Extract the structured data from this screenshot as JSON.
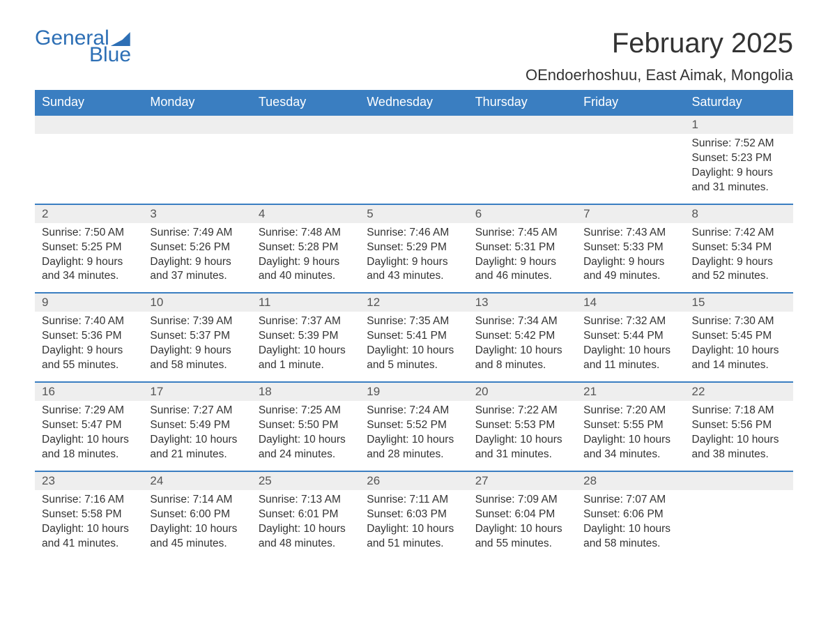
{
  "logo": {
    "text1": "General",
    "text2": "Blue"
  },
  "title": "February 2025",
  "location": "OEndoerhoshuu, East Aimak, Mongolia",
  "colors": {
    "header_bg": "#3a7ec1",
    "header_text": "#ffffff",
    "border": "#3a7ec1",
    "daynum_bg": "#eeeeee",
    "logo": "#2d6fb5"
  },
  "font": {
    "title_size": 40,
    "location_size": 22,
    "dow_size": 18,
    "body_size": 15.5
  },
  "dow": [
    "Sunday",
    "Monday",
    "Tuesday",
    "Wednesday",
    "Thursday",
    "Friday",
    "Saturday"
  ],
  "weeks": [
    [
      {
        "n": "",
        "sr": "",
        "ss": "",
        "dl": ""
      },
      {
        "n": "",
        "sr": "",
        "ss": "",
        "dl": ""
      },
      {
        "n": "",
        "sr": "",
        "ss": "",
        "dl": ""
      },
      {
        "n": "",
        "sr": "",
        "ss": "",
        "dl": ""
      },
      {
        "n": "",
        "sr": "",
        "ss": "",
        "dl": ""
      },
      {
        "n": "",
        "sr": "",
        "ss": "",
        "dl": ""
      },
      {
        "n": "1",
        "sr": "Sunrise: 7:52 AM",
        "ss": "Sunset: 5:23 PM",
        "dl": "Daylight: 9 hours and 31 minutes."
      }
    ],
    [
      {
        "n": "2",
        "sr": "Sunrise: 7:50 AM",
        "ss": "Sunset: 5:25 PM",
        "dl": "Daylight: 9 hours and 34 minutes."
      },
      {
        "n": "3",
        "sr": "Sunrise: 7:49 AM",
        "ss": "Sunset: 5:26 PM",
        "dl": "Daylight: 9 hours and 37 minutes."
      },
      {
        "n": "4",
        "sr": "Sunrise: 7:48 AM",
        "ss": "Sunset: 5:28 PM",
        "dl": "Daylight: 9 hours and 40 minutes."
      },
      {
        "n": "5",
        "sr": "Sunrise: 7:46 AM",
        "ss": "Sunset: 5:29 PM",
        "dl": "Daylight: 9 hours and 43 minutes."
      },
      {
        "n": "6",
        "sr": "Sunrise: 7:45 AM",
        "ss": "Sunset: 5:31 PM",
        "dl": "Daylight: 9 hours and 46 minutes."
      },
      {
        "n": "7",
        "sr": "Sunrise: 7:43 AM",
        "ss": "Sunset: 5:33 PM",
        "dl": "Daylight: 9 hours and 49 minutes."
      },
      {
        "n": "8",
        "sr": "Sunrise: 7:42 AM",
        "ss": "Sunset: 5:34 PM",
        "dl": "Daylight: 9 hours and 52 minutes."
      }
    ],
    [
      {
        "n": "9",
        "sr": "Sunrise: 7:40 AM",
        "ss": "Sunset: 5:36 PM",
        "dl": "Daylight: 9 hours and 55 minutes."
      },
      {
        "n": "10",
        "sr": "Sunrise: 7:39 AM",
        "ss": "Sunset: 5:37 PM",
        "dl": "Daylight: 9 hours and 58 minutes."
      },
      {
        "n": "11",
        "sr": "Sunrise: 7:37 AM",
        "ss": "Sunset: 5:39 PM",
        "dl": "Daylight: 10 hours and 1 minute."
      },
      {
        "n": "12",
        "sr": "Sunrise: 7:35 AM",
        "ss": "Sunset: 5:41 PM",
        "dl": "Daylight: 10 hours and 5 minutes."
      },
      {
        "n": "13",
        "sr": "Sunrise: 7:34 AM",
        "ss": "Sunset: 5:42 PM",
        "dl": "Daylight: 10 hours and 8 minutes."
      },
      {
        "n": "14",
        "sr": "Sunrise: 7:32 AM",
        "ss": "Sunset: 5:44 PM",
        "dl": "Daylight: 10 hours and 11 minutes."
      },
      {
        "n": "15",
        "sr": "Sunrise: 7:30 AM",
        "ss": "Sunset: 5:45 PM",
        "dl": "Daylight: 10 hours and 14 minutes."
      }
    ],
    [
      {
        "n": "16",
        "sr": "Sunrise: 7:29 AM",
        "ss": "Sunset: 5:47 PM",
        "dl": "Daylight: 10 hours and 18 minutes."
      },
      {
        "n": "17",
        "sr": "Sunrise: 7:27 AM",
        "ss": "Sunset: 5:49 PM",
        "dl": "Daylight: 10 hours and 21 minutes."
      },
      {
        "n": "18",
        "sr": "Sunrise: 7:25 AM",
        "ss": "Sunset: 5:50 PM",
        "dl": "Daylight: 10 hours and 24 minutes."
      },
      {
        "n": "19",
        "sr": "Sunrise: 7:24 AM",
        "ss": "Sunset: 5:52 PM",
        "dl": "Daylight: 10 hours and 28 minutes."
      },
      {
        "n": "20",
        "sr": "Sunrise: 7:22 AM",
        "ss": "Sunset: 5:53 PM",
        "dl": "Daylight: 10 hours and 31 minutes."
      },
      {
        "n": "21",
        "sr": "Sunrise: 7:20 AM",
        "ss": "Sunset: 5:55 PM",
        "dl": "Daylight: 10 hours and 34 minutes."
      },
      {
        "n": "22",
        "sr": "Sunrise: 7:18 AM",
        "ss": "Sunset: 5:56 PM",
        "dl": "Daylight: 10 hours and 38 minutes."
      }
    ],
    [
      {
        "n": "23",
        "sr": "Sunrise: 7:16 AM",
        "ss": "Sunset: 5:58 PM",
        "dl": "Daylight: 10 hours and 41 minutes."
      },
      {
        "n": "24",
        "sr": "Sunrise: 7:14 AM",
        "ss": "Sunset: 6:00 PM",
        "dl": "Daylight: 10 hours and 45 minutes."
      },
      {
        "n": "25",
        "sr": "Sunrise: 7:13 AM",
        "ss": "Sunset: 6:01 PM",
        "dl": "Daylight: 10 hours and 48 minutes."
      },
      {
        "n": "26",
        "sr": "Sunrise: 7:11 AM",
        "ss": "Sunset: 6:03 PM",
        "dl": "Daylight: 10 hours and 51 minutes."
      },
      {
        "n": "27",
        "sr": "Sunrise: 7:09 AM",
        "ss": "Sunset: 6:04 PM",
        "dl": "Daylight: 10 hours and 55 minutes."
      },
      {
        "n": "28",
        "sr": "Sunrise: 7:07 AM",
        "ss": "Sunset: 6:06 PM",
        "dl": "Daylight: 10 hours and 58 minutes."
      },
      {
        "n": "",
        "sr": "",
        "ss": "",
        "dl": ""
      }
    ]
  ]
}
